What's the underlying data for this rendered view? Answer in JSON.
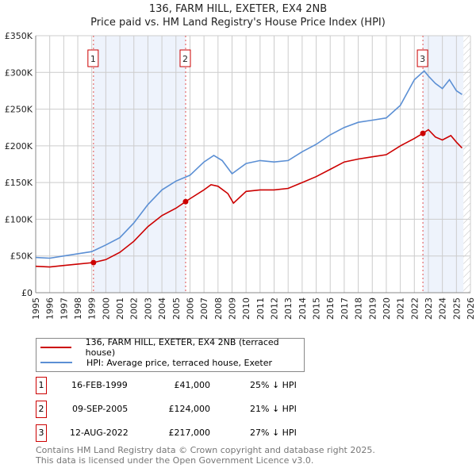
{
  "chart_data": {
    "type": "line",
    "title": "136, FARM HILL, EXETER, EX4 2NB",
    "subtitle": "Price paid vs. HM Land Registry's House Price Index (HPI)",
    "xlim": [
      1995,
      2026
    ],
    "ylim": [
      0,
      350000
    ],
    "yticks": [
      {
        "v": 0,
        "label": "£0"
      },
      {
        "v": 50000,
        "label": "£50K"
      },
      {
        "v": 100000,
        "label": "£100K"
      },
      {
        "v": 150000,
        "label": "£150K"
      },
      {
        "v": 200000,
        "label": "£200K"
      },
      {
        "v": 250000,
        "label": "£250K"
      },
      {
        "v": 300000,
        "label": "£300K"
      },
      {
        "v": 350000,
        "label": "£350K"
      }
    ],
    "xticks": [
      "1995",
      "1996",
      "1997",
      "1998",
      "1999",
      "2000",
      "2001",
      "2002",
      "2003",
      "2004",
      "2005",
      "2006",
      "2007",
      "2008",
      "2009",
      "2010",
      "2011",
      "2012",
      "2013",
      "2014",
      "2015",
      "2016",
      "2017",
      "2018",
      "2019",
      "2020",
      "2021",
      "2022",
      "2023",
      "2024",
      "2025",
      "2026"
    ],
    "series": [
      {
        "name": "136, FARM HILL, EXETER, EX4 2NB (terraced house)",
        "color": "#cc0000",
        "x": [
          1995,
          1996,
          1997,
          1998,
          1999.12,
          2000,
          2001,
          2002,
          2003,
          2004,
          2005,
          2005.69,
          2006,
          2007,
          2007.5,
          2008,
          2008.7,
          2009.1,
          2010,
          2011,
          2012,
          2013,
          2014,
          2015,
          2016,
          2017,
          2018,
          2019,
          2020,
          2021,
          2022,
          2022.61,
          2023,
          2023.5,
          2024,
          2024.6,
          2025,
          2025.4
        ],
        "y": [
          36000,
          35000,
          37000,
          39000,
          41000,
          45000,
          55000,
          70000,
          90000,
          105000,
          115000,
          124000,
          128000,
          140000,
          147000,
          145000,
          135000,
          122000,
          138000,
          140000,
          140000,
          142000,
          150000,
          158000,
          168000,
          178000,
          182000,
          185000,
          188000,
          200000,
          210000,
          217000,
          222000,
          212000,
          208000,
          214000,
          205000,
          197000
        ]
      },
      {
        "name": "HPI: Average price, terraced house, Exeter",
        "color": "#5b8fd4",
        "x": [
          1995,
          1996,
          1997,
          1998,
          1999,
          2000,
          2001,
          2002,
          2003,
          2004,
          2005,
          2006,
          2007,
          2007.7,
          2008.3,
          2009,
          2010,
          2011,
          2012,
          2013,
          2014,
          2015,
          2016,
          2017,
          2018,
          2019,
          2020,
          2021,
          2022,
          2022.7,
          2023,
          2023.5,
          2024,
          2024.5,
          2025,
          2025.4
        ],
        "y": [
          48000,
          47000,
          50000,
          53000,
          56000,
          65000,
          75000,
          95000,
          120000,
          140000,
          152000,
          160000,
          178000,
          187000,
          180000,
          162000,
          176000,
          180000,
          178000,
          180000,
          192000,
          202000,
          215000,
          225000,
          232000,
          235000,
          238000,
          255000,
          290000,
          302000,
          295000,
          285000,
          278000,
          290000,
          275000,
          270000
        ]
      }
    ],
    "sales": [
      {
        "n": "1",
        "x": 1999.12,
        "y": 41000
      },
      {
        "n": "2",
        "x": 2005.69,
        "y": 124000
      },
      {
        "n": "3",
        "x": 2022.61,
        "y": 217000
      }
    ],
    "shaded": [
      [
        1999.12,
        2005.69
      ],
      [
        2022.61,
        2025.5
      ]
    ],
    "hatch_from": 2025.5
  },
  "legend": {
    "items": [
      "136, FARM HILL, EXETER, EX4 2NB (terraced house)",
      "HPI: Average price, terraced house, Exeter"
    ]
  },
  "table": [
    {
      "n": "1",
      "date": "16-FEB-1999",
      "price": "£41,000",
      "hpi": "25% ↓ HPI"
    },
    {
      "n": "2",
      "date": "09-SEP-2005",
      "price": "£124,000",
      "hpi": "21% ↓ HPI"
    },
    {
      "n": "3",
      "date": "12-AUG-2022",
      "price": "£217,000",
      "hpi": "27% ↓ HPI"
    }
  ],
  "footer": {
    "line1": "Contains HM Land Registry data © Crown copyright and database right 2025.",
    "line2": "This data is licensed under the Open Government Licence v3.0."
  }
}
